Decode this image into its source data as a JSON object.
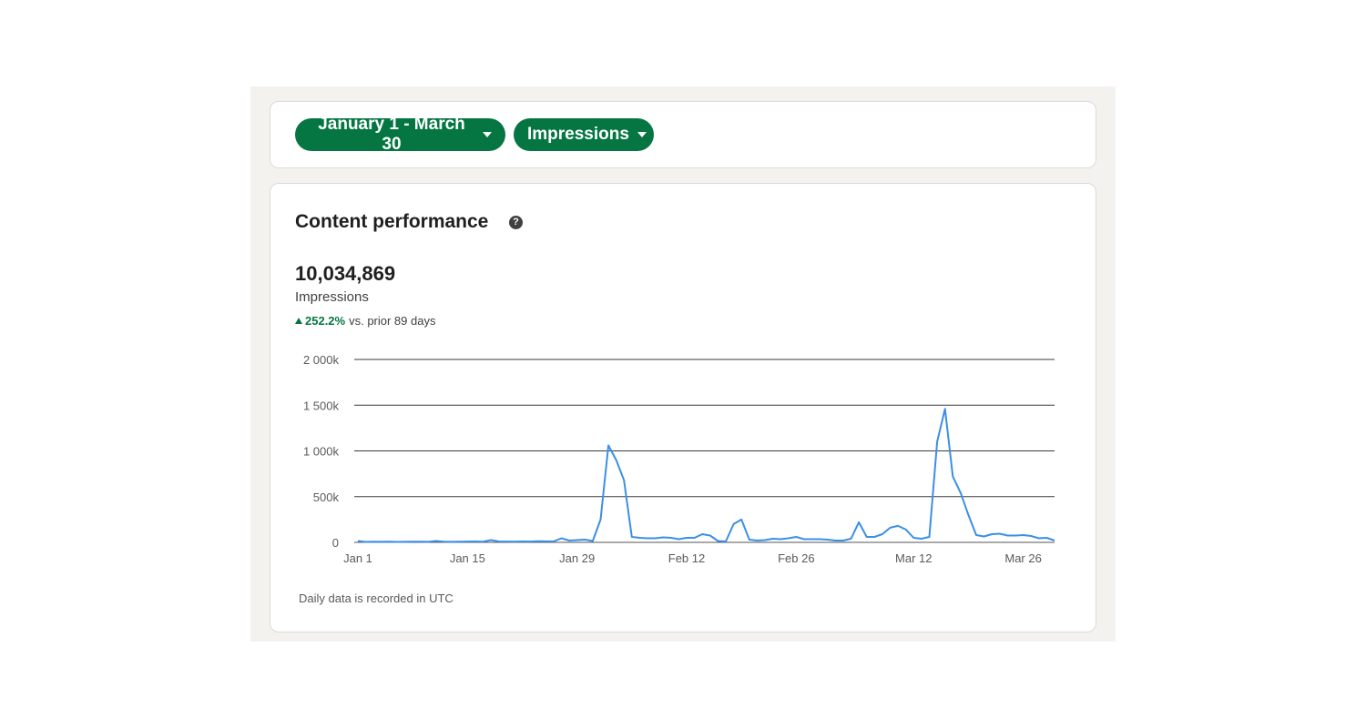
{
  "filters": {
    "date_range": "January 1 - March 30",
    "metric": "Impressions"
  },
  "performance": {
    "title": "Content performance",
    "total": "10,034,869",
    "metric_label": "Impressions",
    "change_pct": "252.2%",
    "change_text": "vs. prior 89 days",
    "footnote": "Daily data is recorded in UTC"
  },
  "icons": {
    "help": "help-circle-icon",
    "dropdown": "caret-down-icon",
    "trend": "triangle-up-icon"
  },
  "colors": {
    "accent": "#057642",
    "line": "#3b8fe6",
    "panel_bg": "#f3f2ee"
  },
  "chart_data": {
    "type": "line",
    "title": "",
    "xlabel": "",
    "ylabel": "",
    "ylim": [
      0,
      2000000
    ],
    "y_ticks": [
      0,
      500000,
      1000000,
      1500000,
      2000000
    ],
    "y_tick_labels": [
      "0",
      "500k",
      "1 000k",
      "1 500k",
      "2 000k"
    ],
    "x_ticks": [
      "2024-01-01",
      "2024-01-15",
      "2024-01-29",
      "2024-02-12",
      "2024-02-26",
      "2024-03-12",
      "2024-03-26"
    ],
    "x_tick_labels": [
      "Jan 1",
      "Jan 15",
      "Jan 29",
      "Feb 12",
      "Feb 26",
      "Mar 12",
      "Mar 26"
    ],
    "grid": true,
    "series": [
      {
        "x": [
          "2024-01-01",
          "2024-01-02",
          "2024-01-03",
          "2024-01-04",
          "2024-01-05",
          "2024-01-06",
          "2024-01-07",
          "2024-01-08",
          "2024-01-09",
          "2024-01-10",
          "2024-01-11",
          "2024-01-12",
          "2024-01-13",
          "2024-01-14",
          "2024-01-15",
          "2024-01-16",
          "2024-01-17",
          "2024-01-18",
          "2024-01-19",
          "2024-01-20",
          "2024-01-21",
          "2024-01-22",
          "2024-01-23",
          "2024-01-24",
          "2024-01-25",
          "2024-01-26",
          "2024-01-27",
          "2024-01-28",
          "2024-01-29",
          "2024-01-30",
          "2024-01-31",
          "2024-02-01",
          "2024-02-02",
          "2024-02-03",
          "2024-02-04",
          "2024-02-05",
          "2024-02-06",
          "2024-02-07",
          "2024-02-08",
          "2024-02-09",
          "2024-02-10",
          "2024-02-11",
          "2024-02-12",
          "2024-02-13",
          "2024-02-14",
          "2024-02-15",
          "2024-02-16",
          "2024-02-17",
          "2024-02-18",
          "2024-02-19",
          "2024-02-20",
          "2024-02-21",
          "2024-02-22",
          "2024-02-23",
          "2024-02-24",
          "2024-02-25",
          "2024-02-26",
          "2024-02-27",
          "2024-02-28",
          "2024-02-29",
          "2024-03-01",
          "2024-03-02",
          "2024-03-03",
          "2024-03-04",
          "2024-03-05",
          "2024-03-06",
          "2024-03-07",
          "2024-03-08",
          "2024-03-09",
          "2024-03-10",
          "2024-03-11",
          "2024-03-12",
          "2024-03-13",
          "2024-03-14",
          "2024-03-15",
          "2024-03-16",
          "2024-03-17",
          "2024-03-18",
          "2024-03-19",
          "2024-03-20",
          "2024-03-21",
          "2024-03-22",
          "2024-03-23",
          "2024-03-24",
          "2024-03-25",
          "2024-03-26",
          "2024-03-27",
          "2024-03-28",
          "2024-03-29",
          "2024-03-30"
        ],
        "values": [
          15000,
          5000,
          8000,
          6000,
          7000,
          5000,
          6000,
          8000,
          7000,
          6000,
          15000,
          8000,
          6000,
          7000,
          9000,
          10000,
          8000,
          25000,
          10000,
          9000,
          8000,
          10000,
          9000,
          12000,
          11000,
          10000,
          45000,
          20000,
          25000,
          30000,
          15000,
          250000,
          1060000,
          900000,
          680000,
          60000,
          50000,
          45000,
          45000,
          55000,
          50000,
          35000,
          50000,
          50000,
          90000,
          75000,
          15000,
          10000,
          200000,
          250000,
          30000,
          20000,
          25000,
          40000,
          35000,
          45000,
          60000,
          35000,
          35000,
          35000,
          30000,
          20000,
          20000,
          40000,
          220000,
          60000,
          60000,
          90000,
          160000,
          180000,
          140000,
          50000,
          40000,
          60000,
          1100000,
          1460000,
          720000,
          540000,
          300000,
          80000,
          65000,
          90000,
          95000,
          75000,
          75000,
          80000,
          70000,
          45000,
          50000,
          20000
        ]
      }
    ]
  }
}
